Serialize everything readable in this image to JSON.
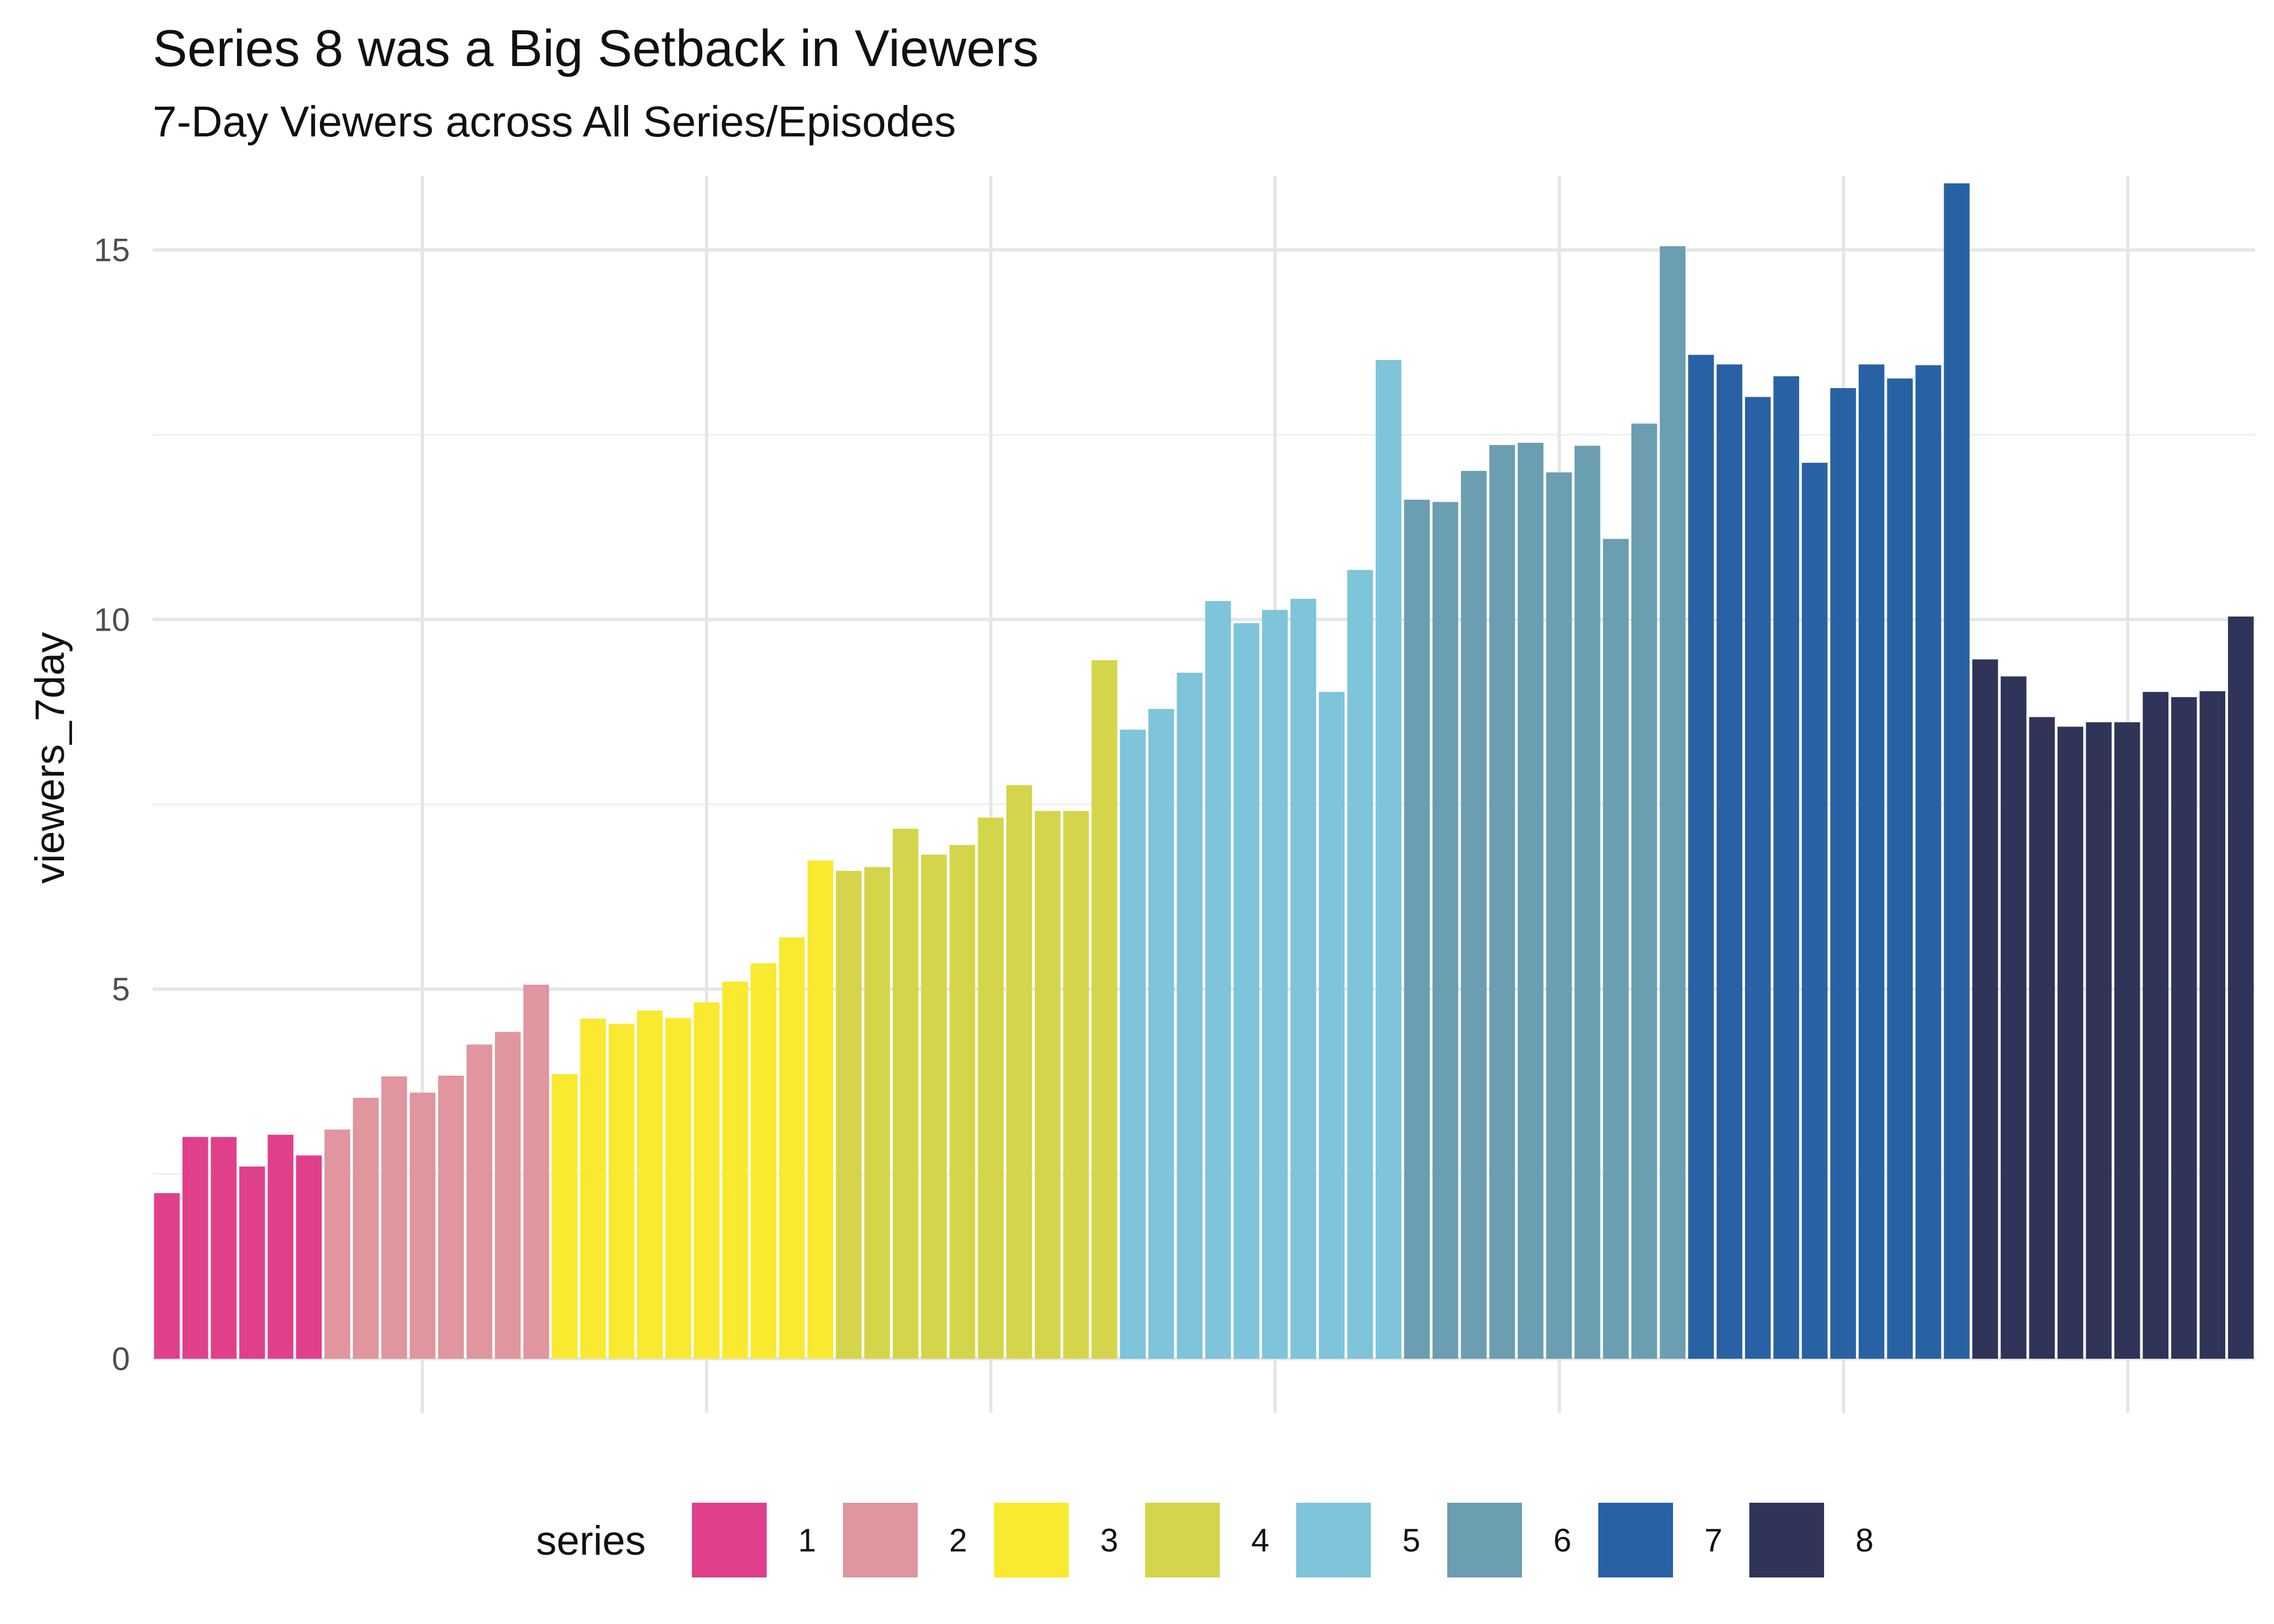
{
  "chart_data": {
    "type": "bar",
    "title": "Series 8 was a Big Setback in Viewers",
    "subtitle": "7-Day Viewers across All Series/Episodes",
    "xlabel": "",
    "ylabel": "viewers_7day",
    "ylim": [
      0,
      16.0
    ],
    "yticks": [
      0,
      5,
      10,
      15
    ],
    "grid": true,
    "legend": {
      "title": "series",
      "position": "bottom"
    },
    "series": [
      {
        "name": "1",
        "color": "#e0408a",
        "values": [
          2.24,
          3.0,
          3.0,
          2.6,
          3.03,
          2.75
        ]
      },
      {
        "name": "2",
        "color": "#e0959f",
        "values": [
          3.1,
          3.53,
          3.82,
          3.6,
          3.83,
          4.25,
          4.42,
          5.06
        ]
      },
      {
        "name": "3",
        "color": "#f9e92f",
        "values": [
          3.85,
          4.6,
          4.53,
          4.71,
          4.61,
          4.82,
          5.1,
          5.35,
          5.7,
          6.74
        ]
      },
      {
        "name": "4",
        "color": "#d5d54b",
        "values": [
          6.6,
          6.65,
          7.17,
          6.82,
          6.95,
          7.32,
          7.76,
          7.41,
          7.41,
          9.45
        ]
      },
      {
        "name": "5",
        "color": "#7ec4da",
        "values": [
          8.51,
          8.79,
          9.28,
          10.25,
          9.95,
          10.13,
          10.28,
          9.02,
          10.67,
          13.51
        ]
      },
      {
        "name": "6",
        "color": "#6b9eb0",
        "values": [
          11.62,
          11.59,
          12.01,
          12.36,
          12.39,
          11.99,
          12.35,
          11.09,
          12.65,
          15.05
        ]
      },
      {
        "name": "7",
        "color": "#2862a4",
        "values": [
          13.58,
          13.45,
          13.01,
          13.29,
          12.12,
          13.13,
          13.45,
          13.26,
          13.44,
          15.9
        ]
      },
      {
        "name": "8",
        "color": "#303459",
        "values": [
          9.46,
          9.23,
          8.68,
          8.55,
          8.61,
          8.61,
          9.02,
          8.95,
          9.03,
          10.04
        ]
      }
    ]
  }
}
